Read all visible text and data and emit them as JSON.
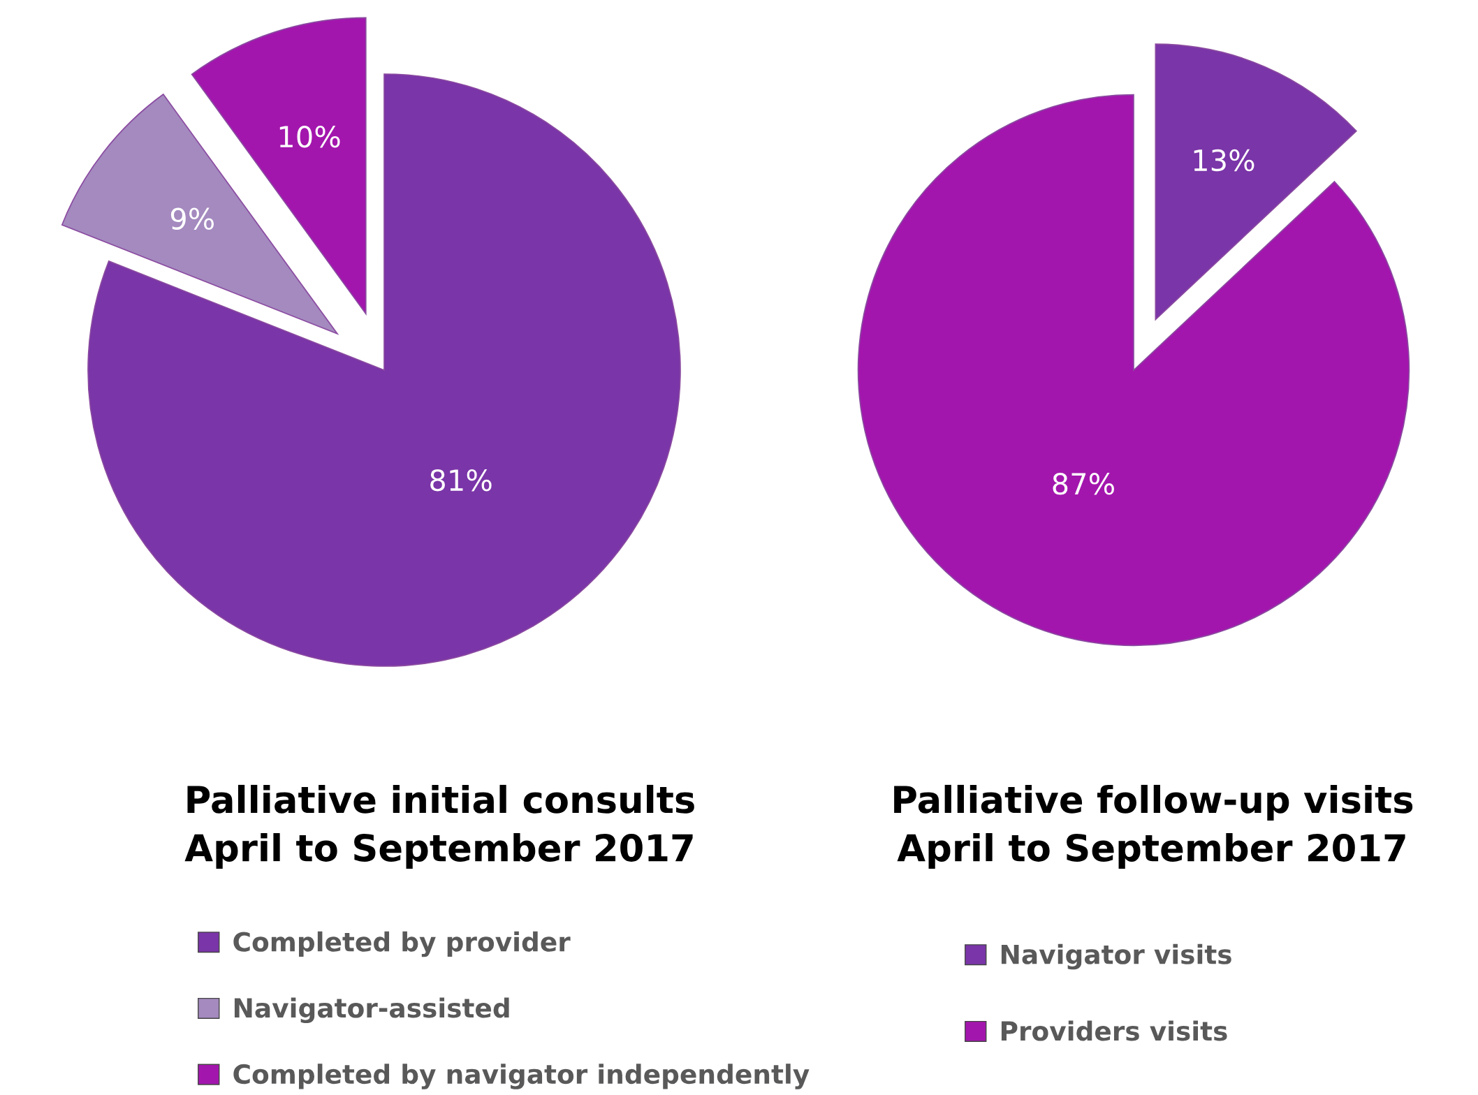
{
  "chart_data": [
    {
      "type": "pie",
      "title": "Palliative initial consults\nApril to September 2017",
      "categories": [
        "Completed by provider",
        "Navigator-assisted",
        "Completed by navigator independently"
      ],
      "values": [
        81,
        9,
        10
      ],
      "colors": [
        "#7a35a8",
        "#a48abf",
        "#a316ad"
      ],
      "value_labels": [
        "81%",
        "9%",
        "10%"
      ],
      "legend": "bottom"
    },
    {
      "type": "pie",
      "title": "Palliative follow-up visits\nApril to September 2017",
      "categories": [
        "Navigator visits",
        "Providers visits"
      ],
      "values": [
        13,
        87
      ],
      "colors": [
        "#7a35a8",
        "#a316ad"
      ],
      "value_labels": [
        "13%",
        "87%"
      ],
      "legend": "bottom"
    }
  ]
}
